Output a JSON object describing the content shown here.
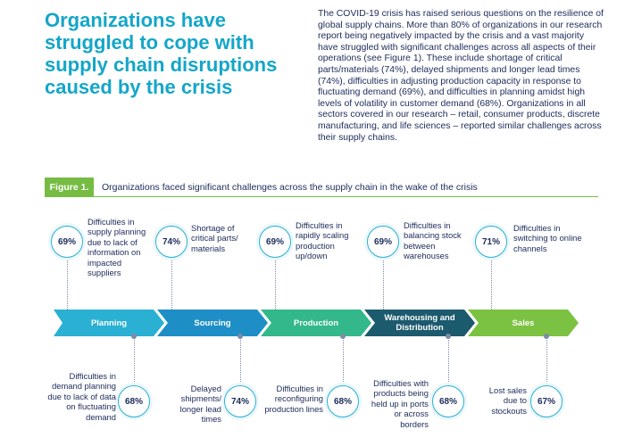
{
  "headline": "Organizations have struggled to cope with supply chain disruptions caused by the crisis",
  "intro": "The COVID-19 crisis has raised serious questions on the resilience of global supply chains. More than 80% of organizations in our research report being negatively impacted by the crisis and a vast majority have struggled with significant challenges across all aspects of their operations (see Figure 1). These include shortage of critical parts/materials (74%), delayed shipments and longer lead times (74%), difficulties in adjusting production capacity in response to fluctuating demand (69%), and difficulties in planning amidst high levels of volatility in customer demand (68%). Organizations in all sectors covered in our research – retail, consumer products, discrete manufacturing, and life sciences – reported similar challenges across their supply chains.",
  "figure": {
    "label": "Figure 1.",
    "title": "Organizations faced significant challenges across the supply chain in the wake of the crisis"
  },
  "stages": [
    {
      "name": "Planning",
      "color": "#2ab0d3"
    },
    {
      "name": "Sourcing",
      "color": "#1d8fc6"
    },
    {
      "name": "Production",
      "color": "#32b88a"
    },
    {
      "name": "Warehousing and Distribution",
      "color": "#1c5a6e"
    },
    {
      "name": "Sales",
      "color": "#7cc242"
    }
  ],
  "top_challenges": [
    {
      "value": "69%",
      "text": "Difficulties in supply planning due to lack of information on impacted suppliers"
    },
    {
      "value": "74%",
      "text": "Shortage of critical parts/ materials"
    },
    {
      "value": "69%",
      "text": "Difficulties in rapidly scaling production up/down"
    },
    {
      "value": "69%",
      "text": "Difficulties in balancing stock between warehouses"
    },
    {
      "value": "71%",
      "text": "Difficulties in switching to online channels"
    }
  ],
  "bottom_challenges": [
    {
      "value": "68%",
      "text": "Difficulties in demand planning due to lack of data on fluctuating demand"
    },
    {
      "value": "74%",
      "text": "Delayed shipments/ longer lead times"
    },
    {
      "value": "68%",
      "text": "Difficulties in reconfiguring production lines"
    },
    {
      "value": "68%",
      "text": "Difficulties with products being held up in ports or across borders"
    },
    {
      "value": "67%",
      "text": "Lost sales due to stockouts"
    }
  ]
}
